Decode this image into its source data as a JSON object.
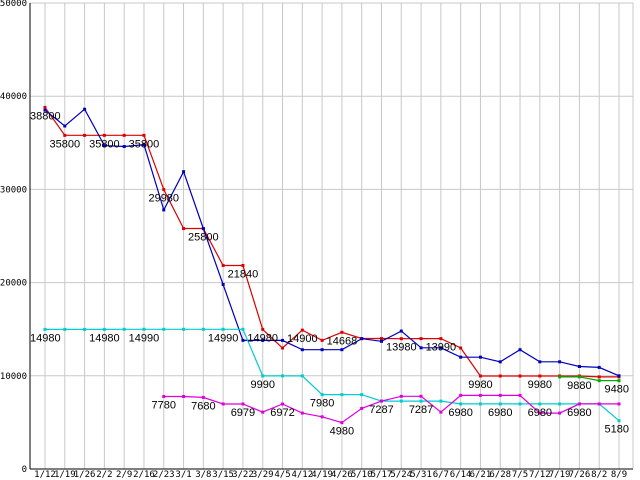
{
  "chart_data": {
    "type": "line",
    "title": "",
    "xlabel": "",
    "ylabel": "",
    "ylim": [
      0,
      50000
    ],
    "yticks": [
      "0",
      "10000",
      "20000",
      "30000",
      "40000",
      "50000"
    ],
    "grid": true,
    "legend": "none",
    "categories": [
      "1/12",
      "1/19",
      "1/26",
      "2/2",
      "2/9",
      "2/16",
      "2/23",
      "3/1",
      "3/8",
      "3/15",
      "3/22",
      "3/29",
      "4/5",
      "4/12",
      "4/19",
      "4/26",
      "5/10",
      "5/17",
      "5/24",
      "5/31",
      "6/7",
      "6/14",
      "6/21",
      "6/28",
      "7/5",
      "7/12",
      "7/19",
      "7/26",
      "8/2",
      "8/9"
    ],
    "series": [
      {
        "color": "#dd0000",
        "values": [
          38800,
          35800,
          35800,
          35800,
          35800,
          35800,
          29980,
          25800,
          25800,
          21840,
          21840,
          14980,
          12980,
          14900,
          13800,
          14668,
          14000,
          14000,
          13980,
          13990,
          13990,
          12980,
          9980,
          9980,
          9980,
          9980,
          9980,
          9980,
          9880,
          9880
        ]
      },
      {
        "color": "#0000bb",
        "values": [
          38500,
          36800,
          38600,
          34700,
          34600,
          34800,
          27800,
          31900,
          25800,
          19800,
          13800,
          13800,
          13800,
          12800,
          12800,
          12800,
          13980,
          13700,
          14800,
          13000,
          13000,
          12000,
          12000,
          11500,
          12800,
          11500,
          11500,
          11000,
          10900,
          10000
        ]
      },
      {
        "color": "#00cccc",
        "values": [
          14980,
          14980,
          14980,
          14980,
          14990,
          14990,
          14990,
          14990,
          14990,
          14990,
          14990,
          9990,
          9990,
          9990,
          7980,
          7980,
          7980,
          7287,
          7287,
          7287,
          7287,
          6980,
          6980,
          6980,
          6980,
          6980,
          6980,
          6980,
          6980,
          5180
        ]
      },
      {
        "color": "#dd00dd",
        "values": [
          null,
          null,
          null,
          null,
          null,
          null,
          7780,
          7780,
          7680,
          6979,
          6979,
          6100,
          6972,
          6000,
          5600,
          4980,
          6500,
          7287,
          7800,
          7800,
          6100,
          7900,
          7900,
          7900,
          7900,
          6000,
          6000,
          6980,
          6980,
          6980
        ]
      },
      {
        "color": "#00aa00",
        "values": [
          null,
          null,
          null,
          null,
          null,
          null,
          null,
          null,
          null,
          null,
          null,
          null,
          null,
          null,
          null,
          null,
          null,
          null,
          null,
          null,
          null,
          null,
          null,
          null,
          null,
          null,
          9880,
          9880,
          9480,
          9480
        ]
      }
    ],
    "labels": [
      {
        "text": "38800",
        "x": 0,
        "y": 38800
      },
      {
        "text": "35800",
        "x": 1,
        "y": 35800
      },
      {
        "text": "35800",
        "x": 3,
        "y": 35800
      },
      {
        "text": "35800",
        "x": 5,
        "y": 35800
      },
      {
        "text": "29980",
        "x": 6,
        "y": 29980
      },
      {
        "text": "25800",
        "x": 8,
        "y": 25800
      },
      {
        "text": "21840",
        "x": 10,
        "y": 21840
      },
      {
        "text": "14980",
        "x": 11,
        "y": 14980
      },
      {
        "text": "14900",
        "x": 13,
        "y": 14900
      },
      {
        "text": "14668",
        "x": 15,
        "y": 14668
      },
      {
        "text": "13980",
        "x": 18,
        "y": 13980
      },
      {
        "text": "13990",
        "x": 20,
        "y": 13990
      },
      {
        "text": "14980",
        "x": 0,
        "y": 14980
      },
      {
        "text": "14980",
        "x": 3,
        "y": 14980
      },
      {
        "text": "14990",
        "x": 5,
        "y": 14990
      },
      {
        "text": "14990",
        "x": 9,
        "y": 14990
      },
      {
        "text": "9990",
        "x": 11,
        "y": 9990
      },
      {
        "text": "7980",
        "x": 14,
        "y": 7980
      },
      {
        "text": "7287",
        "x": 17,
        "y": 7287
      },
      {
        "text": "7287",
        "x": 19,
        "y": 7287
      },
      {
        "text": "7780",
        "x": 6,
        "y": 7780
      },
      {
        "text": "7680",
        "x": 8,
        "y": 7680
      },
      {
        "text": "6979",
        "x": 10,
        "y": 6979
      },
      {
        "text": "6972",
        "x": 12,
        "y": 6972
      },
      {
        "text": "4980",
        "x": 15,
        "y": 4980
      },
      {
        "text": "6980",
        "x": 21,
        "y": 6980
      },
      {
        "text": "6980",
        "x": 23,
        "y": 6980
      },
      {
        "text": "6980",
        "x": 25,
        "y": 6980
      },
      {
        "text": "6980",
        "x": 27,
        "y": 6980
      },
      {
        "text": "9980",
        "x": 22,
        "y": 9980
      },
      {
        "text": "9980",
        "x": 25,
        "y": 9980
      },
      {
        "text": "9880",
        "x": 27,
        "y": 9880
      },
      {
        "text": "9480",
        "x": 29,
        "y": 9480
      },
      {
        "text": "5180",
        "x": 29,
        "y": 5180
      }
    ]
  }
}
